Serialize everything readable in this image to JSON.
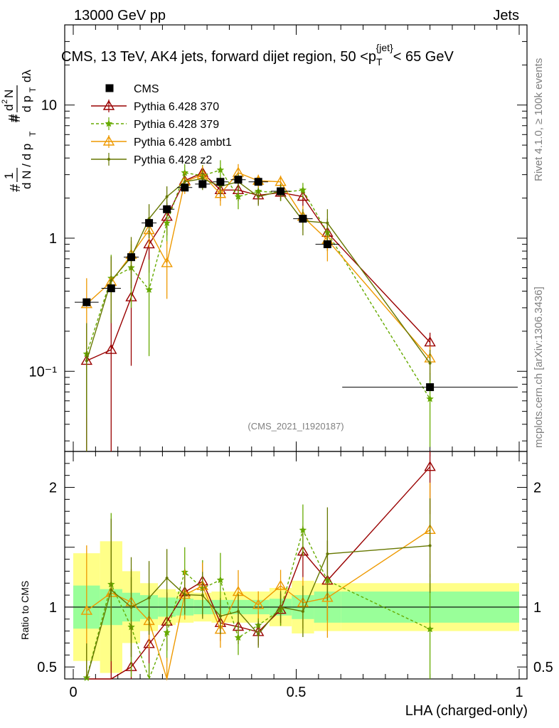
{
  "header": {
    "left": "13000 GeV pp",
    "right": "Jets"
  },
  "side": {
    "rivet": "Rivet 4.1.0, ≥ 100k events",
    "mcplots": "mcplots.cern.ch [arXiv:1306.3436]"
  },
  "chart_data": {
    "type": "line",
    "title": "CMS, 13 TeV, AK4 jets, forward dijet region, 50 < p_T^{jet} < 65 GeV",
    "analysis": "(CMS_2021_I1920187)",
    "xlabel": "LHA (charged-only)",
    "ylabel": "1/(dN/dp_T) d²N/(dp_T dλ)",
    "ylabel_ratio": "Ratio to CMS",
    "xlim": [
      0,
      1
    ],
    "ylim": [
      0.025,
      40
    ],
    "yscale": "log",
    "ratio_ylim": [
      0.4,
      2.3
    ],
    "x_ticks": [
      "0",
      "0.5",
      "1"
    ],
    "y_ticks": [
      {
        "v": 0.1,
        "label": "10⁻¹"
      },
      {
        "v": 1,
        "label": "1"
      },
      {
        "v": 10,
        "label": "10"
      }
    ],
    "ratio_ticks": [
      {
        "v": 0.5,
        "label": "0.5"
      },
      {
        "v": 1,
        "label": "1"
      },
      {
        "v": 2,
        "label": "2"
      }
    ],
    "legend_placement": "top-left",
    "data": {
      "name": "CMS",
      "x": [
        0.03,
        0.085,
        0.13,
        0.17,
        0.21,
        0.25,
        0.29,
        0.33,
        0.37,
        0.415,
        0.465,
        0.515,
        0.57,
        0.8
      ],
      "xerr": [
        0.03,
        0.025,
        0.02,
        0.02,
        0.02,
        0.02,
        0.02,
        0.02,
        0.02,
        0.025,
        0.025,
        0.025,
        0.03,
        0.2
      ],
      "y": [
        0.33,
        0.42,
        0.72,
        1.3,
        1.65,
        2.4,
        2.55,
        2.65,
        2.75,
        2.65,
        2.25,
        1.4,
        0.9,
        0.076
      ],
      "band_inner": [
        0.18,
        0.15,
        0.12,
        0.1,
        0.08,
        0.07,
        0.06,
        0.06,
        0.06,
        0.06,
        0.07,
        0.1,
        0.13,
        0.13
      ],
      "band_outer": [
        0.45,
        0.55,
        0.3,
        0.2,
        0.15,
        0.13,
        0.12,
        0.13,
        0.13,
        0.13,
        0.16,
        0.22,
        0.2,
        0.2
      ]
    },
    "series": [
      {
        "name": "Pythia 6.428 370",
        "color": "#990000",
        "marker": "triangle-open",
        "dash": "none",
        "y": [
          0.12,
          0.145,
          0.36,
          0.9,
          1.45,
          2.7,
          3.1,
          2.3,
          2.3,
          2.1,
          2.2,
          2.05,
          1.1,
          0.165
        ],
        "yerr": [
          0.1,
          0.14,
          0.25,
          0.35,
          0.4,
          0.4,
          0.4,
          0.4,
          0.4,
          0.3,
          0.3,
          0.3,
          0.3,
          0.03
        ]
      },
      {
        "name": "Pythia 6.428 379",
        "color": "#66aa00",
        "marker": "star",
        "dash": "4,3",
        "y": [
          0.135,
          0.5,
          0.6,
          0.41,
          1.3,
          3.1,
          2.95,
          3.25,
          2.05,
          2.25,
          2.2,
          2.3,
          1.1,
          0.062
        ],
        "yerr": [
          0.09,
          0.25,
          0.3,
          0.28,
          0.4,
          0.5,
          0.6,
          0.6,
          0.4,
          0.3,
          0.3,
          0.3,
          0.3,
          0.035
        ]
      },
      {
        "name": "Pythia 6.428 ambt1",
        "color": "#ee9900",
        "marker": "triangle-open",
        "dash": "none",
        "y": [
          0.32,
          0.47,
          0.75,
          1.15,
          0.65,
          2.65,
          3.0,
          2.15,
          3.1,
          2.7,
          2.65,
          1.45,
          0.97,
          0.125
        ],
        "yerr": [
          0.18,
          0.2,
          0.2,
          0.3,
          0.3,
          0.5,
          0.5,
          0.4,
          0.5,
          0.3,
          0.3,
          0.3,
          0.3,
          0.03
        ]
      },
      {
        "name": "Pythia 6.428 z2",
        "color": "#667700",
        "marker": "dot",
        "dash": "none",
        "y": [
          0.12,
          0.48,
          0.72,
          1.4,
          2.05,
          2.65,
          2.8,
          2.45,
          2.65,
          2.05,
          2.25,
          1.35,
          1.3,
          0.115
        ],
        "yerr": [
          0.11,
          0.25,
          0.3,
          0.4,
          0.4,
          0.4,
          0.5,
          0.4,
          0.4,
          0.3,
          0.3,
          0.3,
          0.35,
          0.03
        ]
      }
    ]
  }
}
